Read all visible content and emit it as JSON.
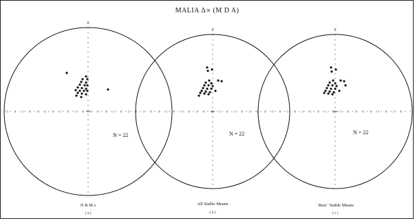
{
  "title": "MALIA Δ∝ (M D A)",
  "north_label": "0",
  "panels": [
    {
      "id": "a",
      "n_label": "N = 22",
      "caption": "N R M s",
      "sublabel": "( a )",
      "points_rel": [
        [
          -31,
          -56
        ],
        [
          -3,
          -51
        ],
        [
          -8,
          -47
        ],
        [
          -1,
          -47
        ],
        [
          -10,
          -43
        ],
        [
          -3,
          -42
        ],
        [
          -12,
          -39
        ],
        [
          -5,
          -38
        ],
        [
          -1,
          -38
        ],
        [
          -15,
          -35
        ],
        [
          -9,
          -34
        ],
        [
          -3,
          -33
        ],
        [
          -18,
          -31
        ],
        [
          -12,
          -30
        ],
        [
          -6,
          -30
        ],
        [
          -1,
          -30
        ],
        [
          -15,
          -27
        ],
        [
          -9,
          -26
        ],
        [
          -3,
          -25
        ],
        [
          -17,
          -23
        ],
        [
          -10,
          -21
        ],
        [
          29,
          -32
        ]
      ]
    },
    {
      "id": "b",
      "n_label": "N = 22",
      "caption": "All Stable Means",
      "sublabel": "( b )",
      "points_rel": [
        [
          -8,
          -64
        ],
        [
          -7,
          -59
        ],
        [
          -1,
          -61
        ],
        [
          -5,
          -45
        ],
        [
          -10,
          -42
        ],
        [
          -2,
          -41
        ],
        [
          -12,
          -38
        ],
        [
          -6,
          -38
        ],
        [
          0,
          -37
        ],
        [
          -14,
          -34
        ],
        [
          -8,
          -33
        ],
        [
          -2,
          -33
        ],
        [
          -16,
          -30
        ],
        [
          -10,
          -29
        ],
        [
          -4,
          -28
        ],
        [
          4,
          -30
        ],
        [
          -18,
          -27
        ],
        [
          -12,
          -26
        ],
        [
          -6,
          -25
        ],
        [
          -20,
          -23
        ],
        [
          8,
          -45
        ],
        [
          13,
          -44
        ]
      ]
    },
    {
      "id": "c",
      "n_label": "N = 22",
      "caption": "' Best ' Stable Means",
      "sublabel": "( c )",
      "points_rel": [
        [
          -6,
          -64
        ],
        [
          -5,
          -58
        ],
        [
          1,
          -61
        ],
        [
          -3,
          -45
        ],
        [
          -8,
          -42
        ],
        [
          0,
          -41
        ],
        [
          -10,
          -38
        ],
        [
          -4,
          -38
        ],
        [
          2,
          -37
        ],
        [
          -12,
          -34
        ],
        [
          -6,
          -33
        ],
        [
          0,
          -33
        ],
        [
          -14,
          -30
        ],
        [
          -8,
          -29
        ],
        [
          -2,
          -28
        ],
        [
          6,
          -30
        ],
        [
          -16,
          -27
        ],
        [
          -10,
          -26
        ],
        [
          -4,
          -25
        ],
        [
          8,
          -45
        ],
        [
          13,
          -44
        ],
        [
          15,
          -38
        ]
      ]
    }
  ]
}
